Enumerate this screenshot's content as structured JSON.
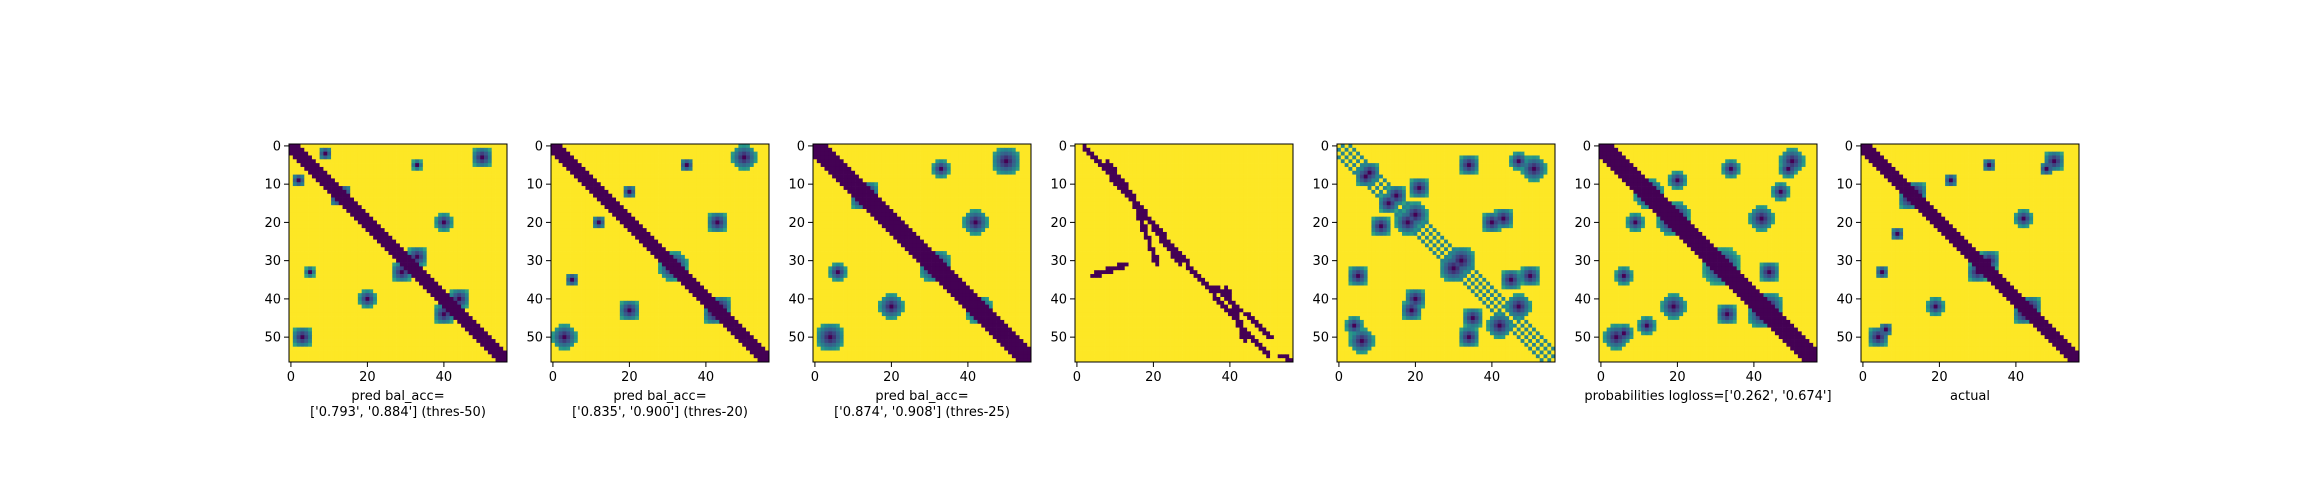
{
  "chart_data": [
    {
      "type": "heatmap",
      "title": "",
      "xlabel": "pred bal_acc=\n['0.793', '0.884'] (thres-50)",
      "ylabel": "",
      "x_ticks": [
        0,
        20,
        40
      ],
      "y_ticks": [
        0,
        10,
        20,
        30,
        40,
        50
      ],
      "size": [
        57,
        57
      ],
      "colormap": "viridis",
      "value_range": [
        0,
        1
      ],
      "approx_structure": {
        "main_diagonal_width": 3,
        "bands": [
          [
            -28,
            2
          ],
          [
            28,
            2
          ],
          [
            -40,
            2
          ],
          [
            40,
            2
          ]
        ],
        "blobs": [
          [
            33,
            29,
            3.0
          ],
          [
            29,
            33,
            3.0
          ],
          [
            40,
            44,
            3.0
          ],
          [
            44,
            40,
            3.0
          ],
          [
            12,
            14,
            2.0
          ],
          [
            14,
            12,
            2.0
          ],
          [
            9,
            2,
            2.0
          ],
          [
            2,
            9,
            2.0
          ],
          [
            50,
            3,
            3.0
          ],
          [
            3,
            50,
            3.0
          ],
          [
            20,
            40,
            2.5
          ],
          [
            40,
            20,
            2.5
          ],
          [
            33,
            5,
            1.5
          ],
          [
            5,
            33,
            1.5
          ]
        ],
        "orientation": "row 0 at top"
      },
      "grid": false
    },
    {
      "type": "heatmap",
      "title": "",
      "xlabel": "pred bal_acc=\n['0.835', '0.900'] (thres-20)",
      "ylabel": "",
      "x_ticks": [
        0,
        20,
        40
      ],
      "y_ticks": [
        0,
        10,
        20,
        30,
        40,
        50
      ],
      "size": [
        57,
        57
      ],
      "colormap": "viridis",
      "value_range": [
        0,
        1
      ],
      "approx_structure": {
        "main_diagonal_width": 3,
        "bands": [
          [
            -28,
            3
          ],
          [
            28,
            3
          ],
          [
            -42,
            2
          ],
          [
            42,
            2
          ]
        ],
        "blobs": [
          [
            31,
            32,
            3.5
          ],
          [
            32,
            31,
            3.5
          ],
          [
            44,
            42,
            3.0
          ],
          [
            42,
            44,
            3.0
          ],
          [
            12,
            20,
            2.0
          ],
          [
            20,
            12,
            2.0
          ],
          [
            20,
            43,
            3.0
          ],
          [
            43,
            20,
            3.0
          ],
          [
            50,
            3,
            3.5
          ],
          [
            3,
            50,
            3.5
          ],
          [
            35,
            5,
            2.0
          ],
          [
            5,
            35,
            2.0
          ]
        ],
        "orientation": "row 0 at top"
      },
      "grid": false
    },
    {
      "type": "heatmap",
      "title": "",
      "xlabel": "pred bal_acc=\n['0.874', '0.908'] (thres-25)",
      "ylabel": "",
      "x_ticks": [
        0,
        20,
        40
      ],
      "y_ticks": [
        0,
        10,
        20,
        30,
        40,
        50
      ],
      "size": [
        57,
        57
      ],
      "colormap": "viridis",
      "value_range": [
        0,
        1
      ],
      "approx_structure": {
        "main_diagonal_width": 4,
        "bands": [
          [
            -28,
            3
          ],
          [
            28,
            3
          ],
          [
            -42,
            3
          ],
          [
            42,
            3
          ]
        ],
        "blobs": [
          [
            31,
            32,
            4.0
          ],
          [
            32,
            31,
            4.0
          ],
          [
            43,
            43,
            4.0
          ],
          [
            12,
            14,
            3.0
          ],
          [
            14,
            12,
            3.0
          ],
          [
            20,
            42,
            3.5
          ],
          [
            42,
            20,
            3.5
          ],
          [
            50,
            4,
            4.0
          ],
          [
            4,
            50,
            4.0
          ],
          [
            33,
            6,
            2.5
          ],
          [
            6,
            33,
            2.5
          ]
        ],
        "orientation": "row 0 at top"
      },
      "grid": false
    },
    {
      "type": "heatmap",
      "title": "",
      "xlabel": "",
      "ylabel": "",
      "x_ticks": [
        0,
        20,
        40
      ],
      "y_ticks": [
        0,
        10,
        20,
        30,
        40,
        50
      ],
      "size": [
        57,
        57
      ],
      "colormap": "viridis",
      "value_range": [
        0,
        1
      ],
      "approx_structure": {
        "segments": [
          [
            4,
            34,
            13,
            31
          ],
          [
            21,
            31,
            14,
            12
          ],
          [
            27,
            31,
            8,
            4
          ],
          [
            44,
            51,
            39,
            37
          ],
          [
            50,
            55,
            2,
            0
          ],
          [
            36,
            37,
            51,
            50
          ],
          [
            53,
            55,
            57,
            56
          ]
        ],
        "orientation": "row 0 at top"
      },
      "grid": false
    },
    {
      "type": "heatmap",
      "title": "",
      "xlabel": "",
      "ylabel": "",
      "x_ticks": [
        0,
        20,
        40
      ],
      "y_ticks": [
        0,
        10,
        20,
        30,
        40,
        50
      ],
      "size": [
        57,
        57
      ],
      "colormap": "viridis",
      "value_range": [
        0,
        1
      ],
      "approx_structure": {
        "stripes_offsets": [
          -1,
          1,
          3,
          -3
        ],
        "blobs": [
          [
            8,
            7,
            3.0
          ],
          [
            7,
            8,
            3.0
          ],
          [
            13,
            15,
            3.0
          ],
          [
            15,
            13,
            3.0
          ],
          [
            20,
            18,
            3.5
          ],
          [
            18,
            20,
            3.5
          ],
          [
            32,
            30,
            4.0
          ],
          [
            30,
            32,
            4.0
          ],
          [
            42,
            47,
            3.5
          ],
          [
            47,
            42,
            3.5
          ],
          [
            19,
            43,
            3.0
          ],
          [
            43,
            19,
            3.0
          ],
          [
            35,
            45,
            3.0
          ],
          [
            45,
            35,
            3.0
          ],
          [
            51,
            6,
            3.5
          ],
          [
            6,
            51,
            3.5
          ],
          [
            34,
            5,
            3.0
          ],
          [
            5,
            34,
            3.0
          ],
          [
            11,
            21,
            3.0
          ],
          [
            21,
            11,
            3.0
          ],
          [
            40,
            20,
            3.0
          ],
          [
            20,
            40,
            3.0
          ],
          [
            4,
            47,
            2.5
          ],
          [
            47,
            4,
            2.5
          ],
          [
            50,
            34,
            3.0
          ],
          [
            34,
            50,
            3.0
          ]
        ],
        "orientation": "row 0 at top"
      },
      "grid": false
    },
    {
      "type": "heatmap",
      "title": "",
      "xlabel": "probabilities logloss=['0.262', '0.674']",
      "ylabel": "",
      "x_ticks": [
        0,
        20,
        40
      ],
      "y_ticks": [
        0,
        10,
        20,
        30,
        40,
        50
      ],
      "size": [
        57,
        57
      ],
      "colormap": "viridis",
      "value_range": [
        0,
        1
      ],
      "approx_structure": {
        "main_diagonal_width": 4,
        "blobs": [
          [
            12,
            13,
            3.5
          ],
          [
            13,
            12,
            3.5
          ],
          [
            20,
            18,
            3.5
          ],
          [
            18,
            20,
            3.5
          ],
          [
            31,
            32,
            4.5
          ],
          [
            32,
            31,
            4.5
          ],
          [
            44,
            42,
            4.0
          ],
          [
            42,
            44,
            4.0
          ],
          [
            19,
            42,
            3.5
          ],
          [
            42,
            19,
            3.5
          ],
          [
            50,
            4,
            3.5
          ],
          [
            4,
            50,
            3.5
          ],
          [
            34,
            6,
            2.5
          ],
          [
            6,
            34,
            2.5
          ],
          [
            9,
            20,
            2.5
          ],
          [
            20,
            9,
            2.5
          ],
          [
            6,
            49,
            2.5
          ],
          [
            49,
            6,
            2.5
          ],
          [
            47,
            12,
            2.5
          ],
          [
            12,
            47,
            2.5
          ],
          [
            33,
            44,
            3.0
          ],
          [
            44,
            33,
            3.0
          ]
        ],
        "orientation": "row 0 at top"
      },
      "grid": false
    },
    {
      "type": "heatmap",
      "title": "",
      "xlabel": "actual",
      "ylabel": "",
      "x_ticks": [
        0,
        20,
        40
      ],
      "y_ticks": [
        0,
        10,
        20,
        30,
        40,
        50
      ],
      "size": [
        57,
        57
      ],
      "colormap": "viridis",
      "value_range": [
        0,
        1
      ],
      "approx_structure": {
        "main_diagonal_width": 3,
        "bands": [
          [
            -28,
            3
          ],
          [
            28,
            3
          ],
          [
            -41,
            2
          ],
          [
            41,
            2
          ]
        ],
        "blobs": [
          [
            12,
            14,
            3.0
          ],
          [
            14,
            12,
            3.0
          ],
          [
            33,
            30,
            3.0
          ],
          [
            30,
            33,
            3.0
          ],
          [
            42,
            44,
            3.0
          ],
          [
            44,
            42,
            3.0
          ],
          [
            19,
            42,
            2.5
          ],
          [
            42,
            19,
            2.5
          ],
          [
            50,
            4,
            3.0
          ],
          [
            4,
            50,
            3.0
          ],
          [
            33,
            5,
            2.0
          ],
          [
            5,
            33,
            2.0
          ],
          [
            9,
            23,
            2.0
          ],
          [
            23,
            9,
            2.0
          ],
          [
            6,
            48,
            2.0
          ],
          [
            48,
            6,
            2.0
          ]
        ],
        "orientation": "row 0 at top"
      },
      "grid": false
    }
  ],
  "colors": {
    "low": "#440154",
    "high": "#fde725",
    "axis": "#000000"
  }
}
